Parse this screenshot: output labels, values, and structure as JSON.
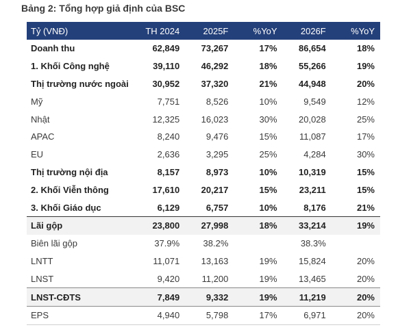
{
  "title": "Bảng 2: Tổng hợp giả định của BSC",
  "table": {
    "headers": [
      "Tỷ (VNĐ)",
      "TH 2024",
      "2025F",
      "%YoY",
      "2026F",
      "%YoY"
    ],
    "rows": [
      [
        "Doanh thu",
        "62,849",
        "73,267",
        "17%",
        "86,654",
        "18%"
      ],
      [
        "1. Khối Công nghệ",
        "39,110",
        "46,292",
        "18%",
        "55,266",
        "19%"
      ],
      [
        "Thị trường nước ngoài",
        "30,952",
        "37,320",
        "21%",
        "44,948",
        "20%"
      ],
      [
        "Mỹ",
        "7,751",
        "8,526",
        "10%",
        "9,549",
        "12%"
      ],
      [
        "Nhật",
        "12,325",
        "16,023",
        "30%",
        "20,028",
        "25%"
      ],
      [
        "APAC",
        "8,240",
        "9,476",
        "15%",
        "11,087",
        "17%"
      ],
      [
        "EU",
        "2,636",
        "3,295",
        "25%",
        "4,284",
        "30%"
      ],
      [
        "Thị trường nội địa",
        "8,157",
        "8,973",
        "10%",
        "10,319",
        "15%"
      ],
      [
        "2. Khối Viễn thông",
        "17,610",
        "20,217",
        "15%",
        "23,211",
        "15%"
      ],
      [
        "3. Khối Giáo dục",
        "6,129",
        "6,757",
        "10%",
        "8,176",
        "21%"
      ],
      [
        "Lãi gộp",
        "23,800",
        "27,998",
        "18%",
        "33,214",
        "19%"
      ],
      [
        "Biên lãi gộp",
        "37.9%",
        "38.2%",
        "",
        "38.3%",
        ""
      ],
      [
        "LNTT",
        "11,071",
        "13,163",
        "19%",
        "15,824",
        "20%"
      ],
      [
        "LNST",
        "9,420",
        "11,200",
        "19%",
        "13,465",
        "20%"
      ],
      [
        "LNST-CĐTS",
        "7,849",
        "9,332",
        "19%",
        "11,219",
        "20%"
      ],
      [
        "EPS",
        "4,940",
        "5,798",
        "17%",
        "6,971",
        "20%"
      ]
    ]
  }
}
